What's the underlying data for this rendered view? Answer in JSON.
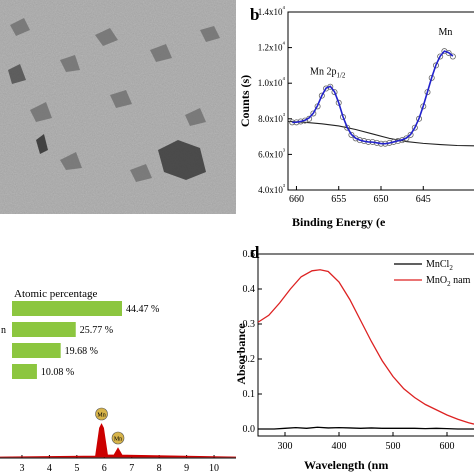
{
  "panels": {
    "b": "b",
    "d": "d"
  },
  "chart_data": [
    {
      "id": "tem-image",
      "type": "image",
      "description_color": "#a9a9a9"
    },
    {
      "id": "xps",
      "type": "line",
      "xlabel": "Binding Energy (e",
      "ylabel": "Counts (s)",
      "xlim": [
        661,
        639
      ],
      "ylim": [
        4000,
        14000
      ],
      "xticks": [
        660,
        655,
        650,
        645
      ],
      "yticks": [
        "4.0x10³",
        "6.0x10³",
        "8.0x10³",
        "1.0x10⁴",
        "1.2x10⁴",
        "1.4x10⁴"
      ],
      "ytick_values": [
        4000,
        6000,
        8000,
        10000,
        12000,
        14000
      ],
      "annotations": [
        {
          "text": "Mn 2p",
          "sub": "1/2"
        },
        {
          "text": "Mn"
        }
      ],
      "series": [
        {
          "role": "raw-data",
          "color": "#666666",
          "x": [
            660.5,
            660,
            659.5,
            659,
            658.5,
            658,
            657.5,
            657,
            656.5,
            656,
            655.5,
            655,
            654.5,
            654,
            653.5,
            653,
            652.5,
            652,
            651.5,
            651,
            650.5,
            650,
            649.5,
            649,
            648.5,
            648,
            647.5,
            647,
            646.5,
            646,
            645.5,
            645,
            644.5,
            644,
            643.5,
            643,
            642.5,
            642,
            641.5
          ],
          "y": [
            7800,
            7800,
            7850,
            7900,
            8000,
            8300,
            8700,
            9300,
            9700,
            9800,
            9500,
            8900,
            8100,
            7500,
            7100,
            6900,
            6800,
            6750,
            6700,
            6700,
            6650,
            6600,
            6600,
            6650,
            6700,
            6750,
            6800,
            6900,
            7100,
            7500,
            8000,
            8700,
            9500,
            10300,
            11000,
            11500,
            11800,
            11700,
            11500
          ]
        },
        {
          "role": "fit",
          "color": "#2222cc",
          "x": [
            660.5,
            660,
            659.5,
            659,
            658.5,
            658,
            657.5,
            657,
            656.5,
            656,
            655.5,
            655,
            654.5,
            654,
            653.5,
            653,
            652.5,
            652,
            651.5,
            651,
            650.5,
            650,
            649.5,
            649,
            648.5,
            648,
            647.5,
            647,
            646.5,
            646,
            645.5,
            645,
            644.5,
            644,
            643.5,
            643,
            642.5,
            642,
            641.5
          ],
          "y": [
            7800,
            7810,
            7850,
            7920,
            8050,
            8320,
            8750,
            9300,
            9720,
            9820,
            9520,
            8900,
            8120,
            7520,
            7120,
            6910,
            6800,
            6740,
            6700,
            6690,
            6650,
            6610,
            6600,
            6640,
            6700,
            6760,
            6820,
            6920,
            7120,
            7500,
            8020,
            8720,
            9520,
            10320,
            11020,
            11520,
            11800,
            11720,
            11520
          ]
        },
        {
          "role": "background",
          "color": "#222222",
          "x": [
            661,
            659,
            657,
            655,
            653,
            651,
            649,
            647,
            645,
            643,
            641,
            639
          ],
          "y": [
            7850,
            7800,
            7720,
            7600,
            7400,
            7150,
            6900,
            6720,
            6620,
            6550,
            6500,
            6480
          ]
        }
      ]
    },
    {
      "id": "eds",
      "type": "bar",
      "title": "Atomic percentage",
      "values": [
        44.47,
        25.77,
        19.68,
        10.08
      ],
      "value_labels": [
        "44.47 %",
        "25.77 %",
        "19.68 %",
        "10.08 %"
      ],
      "row_labels": [
        "",
        "n",
        "",
        ""
      ],
      "bar_color": "#8cc63f",
      "spectrum": {
        "color": "#cc0000",
        "xlim": [
          2.2,
          10.8
        ],
        "xticks": [
          3,
          4,
          5,
          6,
          7,
          8,
          9,
          10
        ],
        "peaks": [
          {
            "label": "Mn",
            "x": 5.9
          },
          {
            "label": "Mn",
            "x": 6.5
          }
        ]
      }
    },
    {
      "id": "uv-vis",
      "type": "line",
      "xlabel": "Wavelength (nm",
      "ylabel": "Absorbance",
      "xlim": [
        250,
        650
      ],
      "ylim": [
        -0.02,
        0.5
      ],
      "xticks": [
        300,
        400,
        500,
        600
      ],
      "yticks": [
        "0.0",
        "0.1",
        "0.2",
        "0.3",
        "0.4",
        "0.5"
      ],
      "ytick_values": [
        0.0,
        0.1,
        0.2,
        0.3,
        0.4,
        0.5
      ],
      "legend": "top-right",
      "series": [
        {
          "name": "MnCl",
          "sub": "2",
          "color": "#000000",
          "x": [
            250,
            280,
            300,
            320,
            340,
            360,
            380,
            400,
            420,
            440,
            460,
            480,
            500,
            520,
            540,
            560,
            580,
            600,
            620,
            650
          ],
          "y": [
            0.0,
            0.0,
            0.002,
            0.004,
            0.002,
            0.005,
            0.003,
            0.004,
            0.003,
            0.002,
            0.003,
            0.002,
            0.002,
            0.002,
            0.002,
            0.001,
            0.002,
            0.001,
            0.0,
            0.0
          ]
        },
        {
          "name": "MnO",
          "sub": "2",
          "name_suffix": " nam",
          "color": "#dd2222",
          "x": [
            250,
            270,
            290,
            310,
            330,
            350,
            365,
            380,
            400,
            420,
            440,
            460,
            480,
            500,
            520,
            540,
            560,
            580,
            600,
            620,
            640,
            650
          ],
          "y": [
            0.305,
            0.325,
            0.36,
            0.4,
            0.435,
            0.452,
            0.455,
            0.45,
            0.42,
            0.37,
            0.31,
            0.25,
            0.195,
            0.15,
            0.115,
            0.09,
            0.07,
            0.055,
            0.04,
            0.028,
            0.018,
            0.014
          ]
        }
      ]
    }
  ]
}
